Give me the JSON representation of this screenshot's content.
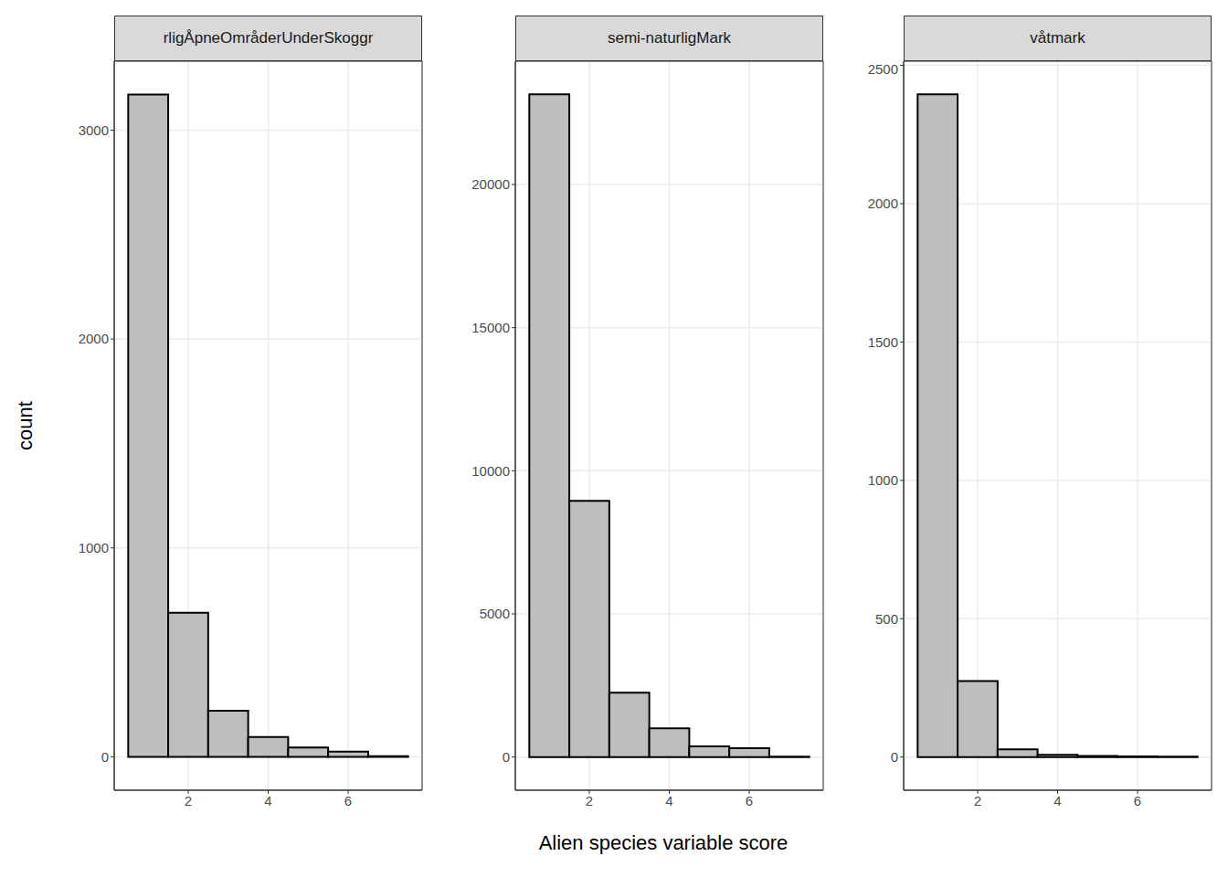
{
  "xlabel": "Alien species variable score",
  "ylabel": "count",
  "chart_data": [
    {
      "type": "histogram",
      "title": "rligÅpneOmråderUnderSkoggr",
      "bins": [
        0.5,
        1.5,
        2.5,
        3.5,
        4.5,
        5.5,
        6.5,
        7.5
      ],
      "values": [
        3170,
        690,
        220,
        95,
        45,
        25,
        3
      ],
      "color": "#bebebe",
      "xlim": [
        0.15,
        7.85
      ],
      "xticks": [
        2,
        4,
        6
      ],
      "ylim": [
        -160,
        3330
      ],
      "yticks": [
        0,
        1000,
        2000,
        3000
      ],
      "grid": true
    },
    {
      "type": "histogram",
      "title": "semi-naturligMark",
      "bins": [
        0.5,
        1.5,
        2.5,
        3.5,
        4.5,
        5.5,
        6.5,
        7.5
      ],
      "values": [
        23150,
        8950,
        2250,
        1000,
        370,
        310,
        10
      ],
      "color": "#bebebe",
      "xlim": [
        0.15,
        7.85
      ],
      "xticks": [
        2,
        4,
        6
      ],
      "ylim": [
        -1160,
        24310
      ],
      "yticks": [
        0,
        5000,
        10000,
        15000,
        20000
      ],
      "grid": true
    },
    {
      "type": "histogram",
      "title": "våtmark",
      "bins": [
        0.5,
        1.5,
        2.5,
        3.5,
        4.5,
        5.5,
        6.5,
        7.5
      ],
      "values": [
        2395,
        275,
        28,
        8,
        4,
        2,
        1
      ],
      "color": "#bebebe",
      "xlim": [
        0.15,
        7.85
      ],
      "xticks": [
        2,
        4,
        6
      ],
      "ylim": [
        -120,
        2515
      ],
      "yticks": [
        0,
        500,
        1000,
        1500,
        2000,
        2500
      ],
      "grid": true
    }
  ]
}
